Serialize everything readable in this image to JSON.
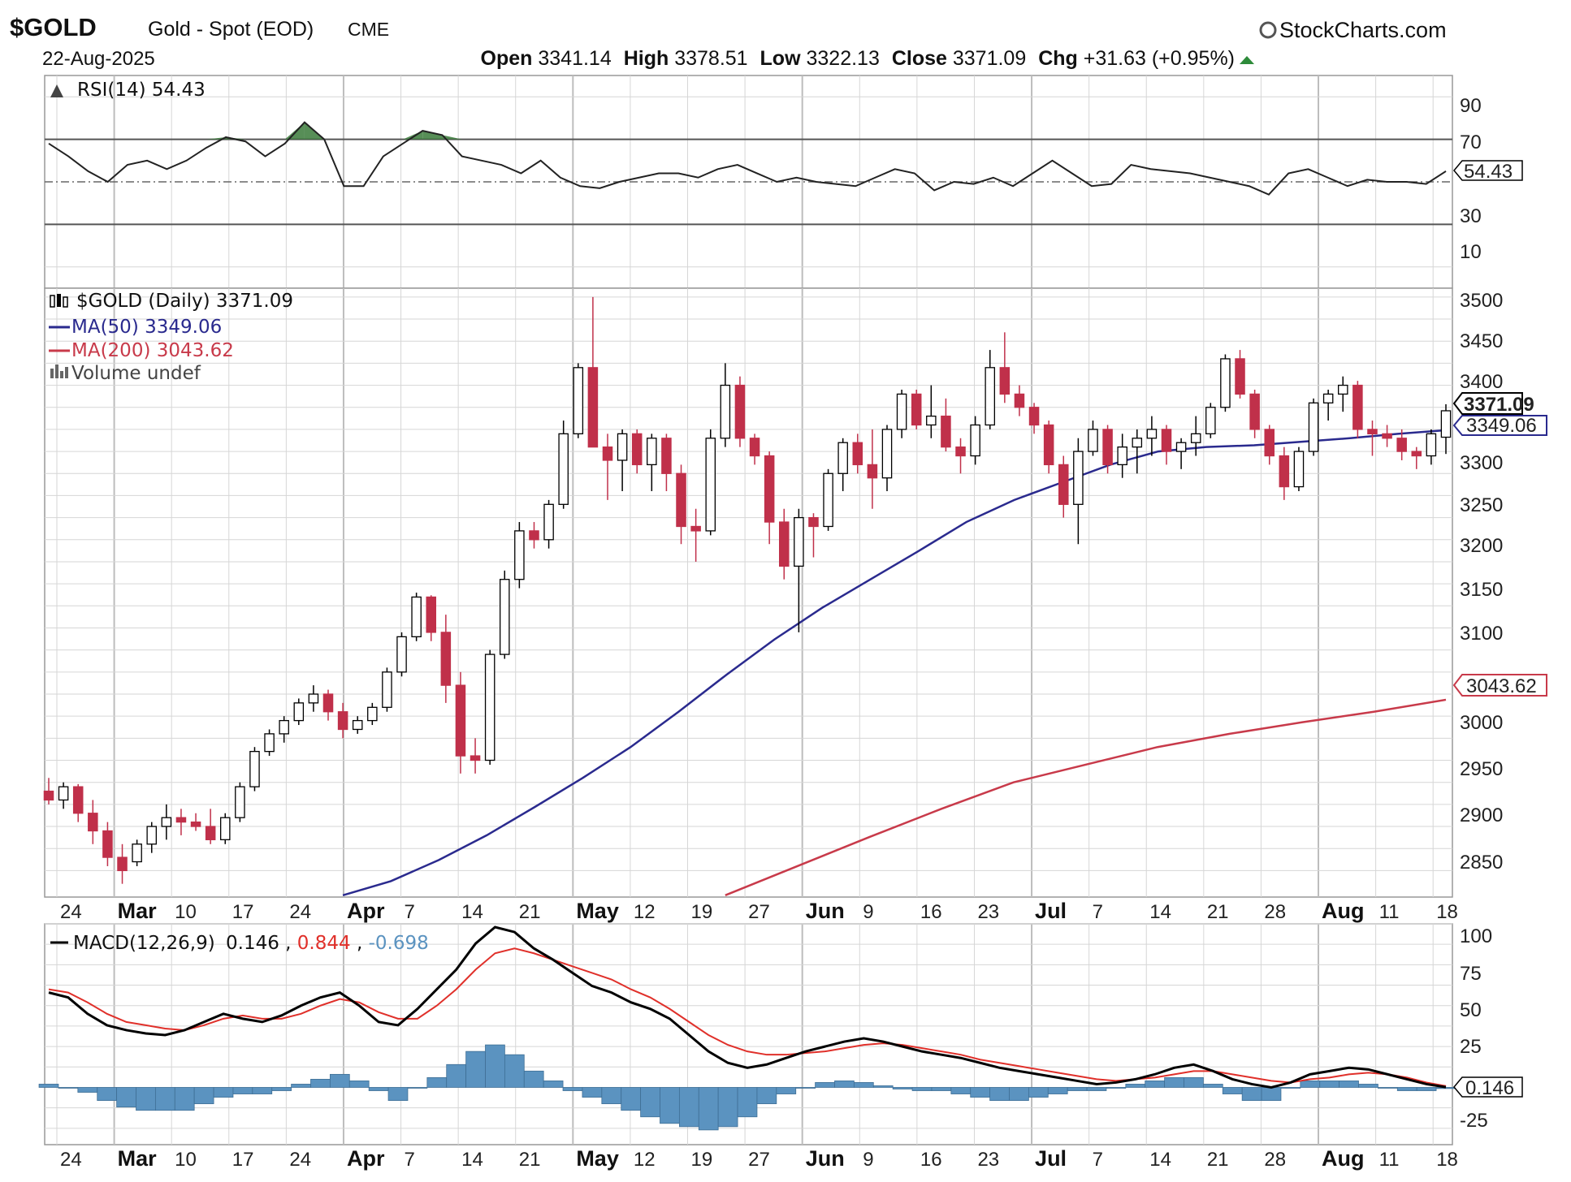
{
  "header": {
    "symbol": "$GOLD",
    "name": "Gold - Spot (EOD)",
    "exchange": "CME",
    "date": "22-Aug-2025",
    "brand": "StockCharts.com",
    "open_label": "Open",
    "open": "3341.14",
    "high_label": "High",
    "high": "3378.51",
    "low_label": "Low",
    "low": "3322.13",
    "close_label": "Close",
    "close": "3371.09",
    "chg_label": "Chg",
    "chg": "+31.63 (+0.95%)"
  },
  "rsi_panel": {
    "legend": "RSI(14) 54.43",
    "ticks": [
      "90",
      "70",
      "30",
      "10"
    ],
    "value_tag": "54.43"
  },
  "price_panel": {
    "legend_price": "$GOLD (Daily) 3371.09",
    "legend_ma50": "MA(50) 3349.06",
    "legend_ma200": "MA(200) 3043.62",
    "legend_volume": "Volume undef",
    "ticks": [
      "3500",
      "3450",
      "3400",
      "3300",
      "3250",
      "3200",
      "3150",
      "3100",
      "3000",
      "2950",
      "2900",
      "2850"
    ],
    "close_tag": "3371.09",
    "ma50_tag": "3349.06",
    "ma200_tag": "3043.62"
  },
  "macd_panel": {
    "legend_name": "MACD(12,26,9)",
    "legend_macd": "0.146",
    "legend_signal": "0.844",
    "legend_hist": "-0.698",
    "ticks": [
      "100",
      "75",
      "50",
      "25",
      "-25"
    ],
    "value_tag": "0.146"
  },
  "x_axis": {
    "labels": [
      {
        "text": "24",
        "bold": false
      },
      {
        "text": "Mar",
        "bold": true
      },
      {
        "text": "10",
        "bold": false
      },
      {
        "text": "17",
        "bold": false
      },
      {
        "text": "24",
        "bold": false
      },
      {
        "text": "Apr",
        "bold": true
      },
      {
        "text": "7",
        "bold": false
      },
      {
        "text": "14",
        "bold": false
      },
      {
        "text": "21",
        "bold": false
      },
      {
        "text": "May",
        "bold": true
      },
      {
        "text": "12",
        "bold": false
      },
      {
        "text": "19",
        "bold": false
      },
      {
        "text": "27",
        "bold": false
      },
      {
        "text": "Jun",
        "bold": true
      },
      {
        "text": "9",
        "bold": false
      },
      {
        "text": "16",
        "bold": false
      },
      {
        "text": "23",
        "bold": false
      },
      {
        "text": "Jul",
        "bold": true
      },
      {
        "text": "7",
        "bold": false
      },
      {
        "text": "14",
        "bold": false
      },
      {
        "text": "21",
        "bold": false
      },
      {
        "text": "28",
        "bold": false
      },
      {
        "text": "Aug",
        "bold": true
      },
      {
        "text": "11",
        "bold": false
      },
      {
        "text": "18",
        "bold": false
      }
    ]
  },
  "colors": {
    "up_candle": "#ffffff",
    "down_candle": "#c0304a",
    "candle_outline": "#000000",
    "ma50": "#2a2a8e",
    "ma200": "#c83a4a",
    "macd_line": "#000000",
    "signal_line": "#e0302a",
    "histogram": "#5b93c0",
    "rsi_fill": "#3a7a3a",
    "grid": "#d6d6d6"
  },
  "chart_data": [
    {
      "type": "line",
      "title": "RSI(14) 54.43",
      "ylim": [
        0,
        100
      ],
      "reference_lines": [
        70,
        50,
        30
      ],
      "values": [
        68,
        62,
        55,
        50,
        58,
        60,
        56,
        60,
        66,
        71,
        69,
        62,
        68,
        78,
        70,
        48,
        48,
        62,
        68,
        74,
        72,
        62,
        60,
        58,
        54,
        60,
        52,
        48,
        47,
        50,
        52,
        54,
        54,
        52,
        56,
        58,
        54,
        50,
        52,
        50,
        49,
        48,
        52,
        56,
        54,
        46,
        50,
        49,
        52,
        48,
        54,
        60,
        54,
        48,
        49,
        58,
        56,
        55,
        54,
        52,
        50,
        48,
        44,
        54,
        56,
        52,
        48,
        51,
        50,
        50,
        49,
        55
      ]
    },
    {
      "type": "candlestick",
      "title": "$GOLD (Daily) 3371.09",
      "ylim": [
        2820,
        3510
      ],
      "ohlc": [
        [
          2940,
          2955,
          2925,
          2930
        ],
        [
          2930,
          2950,
          2920,
          2945
        ],
        [
          2945,
          2948,
          2905,
          2915
        ],
        [
          2915,
          2930,
          2880,
          2895
        ],
        [
          2895,
          2905,
          2855,
          2865
        ],
        [
          2865,
          2880,
          2835,
          2850
        ],
        [
          2860,
          2885,
          2855,
          2880
        ],
        [
          2880,
          2905,
          2870,
          2900
        ],
        [
          2900,
          2925,
          2885,
          2910
        ],
        [
          2910,
          2920,
          2890,
          2905
        ],
        [
          2905,
          2915,
          2895,
          2900
        ],
        [
          2900,
          2920,
          2880,
          2885
        ],
        [
          2885,
          2915,
          2880,
          2910
        ],
        [
          2910,
          2950,
          2905,
          2945
        ],
        [
          2945,
          2990,
          2940,
          2985
        ],
        [
          2985,
          3010,
          2980,
          3005
        ],
        [
          3005,
          3025,
          2995,
          3020
        ],
        [
          3020,
          3045,
          3015,
          3040
        ],
        [
          3040,
          3060,
          3030,
          3050
        ],
        [
          3050,
          3055,
          3020,
          3030
        ],
        [
          3030,
          3040,
          3000,
          3010
        ],
        [
          3010,
          3025,
          3005,
          3020
        ],
        [
          3020,
          3040,
          3015,
          3035
        ],
        [
          3035,
          3080,
          3030,
          3075
        ],
        [
          3075,
          3120,
          3070,
          3115
        ],
        [
          3115,
          3165,
          3110,
          3160
        ],
        [
          3160,
          3162,
          3110,
          3120
        ],
        [
          3120,
          3140,
          3040,
          3060
        ],
        [
          3060,
          3075,
          2960,
          2980
        ],
        [
          2980,
          3000,
          2960,
          2975
        ],
        [
          2975,
          3100,
          2970,
          3095
        ],
        [
          3095,
          3190,
          3090,
          3180
        ],
        [
          3180,
          3245,
          3170,
          3235
        ],
        [
          3235,
          3245,
          3215,
          3225
        ],
        [
          3225,
          3270,
          3215,
          3265
        ],
        [
          3265,
          3360,
          3260,
          3345
        ],
        [
          3345,
          3425,
          3340,
          3420
        ],
        [
          3420,
          3500,
          3330,
          3330
        ],
        [
          3330,
          3345,
          3270,
          3315
        ],
        [
          3315,
          3350,
          3280,
          3345
        ],
        [
          3345,
          3350,
          3300,
          3310
        ],
        [
          3310,
          3345,
          3280,
          3340
        ],
        [
          3340,
          3345,
          3280,
          3300
        ],
        [
          3300,
          3310,
          3220,
          3240
        ],
        [
          3240,
          3260,
          3200,
          3235
        ],
        [
          3235,
          3350,
          3230,
          3340
        ],
        [
          3340,
          3425,
          3330,
          3400
        ],
        [
          3400,
          3410,
          3330,
          3340
        ],
        [
          3340,
          3345,
          3310,
          3320
        ],
        [
          3320,
          3325,
          3220,
          3245
        ],
        [
          3245,
          3260,
          3180,
          3195
        ],
        [
          3195,
          3260,
          3120,
          3250
        ],
        [
          3250,
          3255,
          3205,
          3240
        ],
        [
          3240,
          3305,
          3235,
          3300
        ],
        [
          3300,
          3340,
          3280,
          3335
        ],
        [
          3335,
          3345,
          3300,
          3310
        ],
        [
          3310,
          3350,
          3260,
          3295
        ],
        [
          3295,
          3355,
          3280,
          3350
        ],
        [
          3350,
          3395,
          3340,
          3390
        ],
        [
          3390,
          3395,
          3350,
          3355
        ],
        [
          3355,
          3400,
          3340,
          3365
        ],
        [
          3365,
          3385,
          3325,
          3330
        ],
        [
          3330,
          3340,
          3300,
          3320
        ],
        [
          3320,
          3365,
          3310,
          3355
        ],
        [
          3355,
          3440,
          3350,
          3420
        ],
        [
          3420,
          3460,
          3380,
          3390
        ],
        [
          3390,
          3400,
          3365,
          3375
        ],
        [
          3375,
          3380,
          3345,
          3355
        ],
        [
          3355,
          3360,
          3300,
          3310
        ],
        [
          3310,
          3320,
          3250,
          3265
        ],
        [
          3265,
          3340,
          3220,
          3325
        ],
        [
          3325,
          3360,
          3320,
          3350
        ],
        [
          3350,
          3355,
          3300,
          3310
        ],
        [
          3310,
          3345,
          3295,
          3330
        ],
        [
          3330,
          3350,
          3300,
          3340
        ],
        [
          3340,
          3365,
          3320,
          3350
        ],
        [
          3350,
          3355,
          3310,
          3325
        ],
        [
          3325,
          3340,
          3305,
          3335
        ],
        [
          3335,
          3365,
          3320,
          3345
        ],
        [
          3345,
          3380,
          3340,
          3375
        ],
        [
          3375,
          3435,
          3370,
          3430
        ],
        [
          3430,
          3440,
          3385,
          3390
        ],
        [
          3390,
          3395,
          3340,
          3350
        ],
        [
          3350,
          3355,
          3310,
          3320
        ],
        [
          3320,
          3330,
          3270,
          3285
        ],
        [
          3285,
          3330,
          3280,
          3325
        ],
        [
          3325,
          3385,
          3320,
          3380
        ],
        [
          3380,
          3395,
          3360,
          3390
        ],
        [
          3390,
          3410,
          3370,
          3400
        ],
        [
          3400,
          3405,
          3340,
          3350
        ],
        [
          3350,
          3360,
          3320,
          3345
        ],
        [
          3345,
          3355,
          3330,
          3340
        ],
        [
          3340,
          3350,
          3315,
          3325
        ],
        [
          3325,
          3330,
          3305,
          3320
        ],
        [
          3320,
          3350,
          3310,
          3345
        ],
        [
          3341.14,
          3378.51,
          3322.13,
          3371.09
        ]
      ],
      "series": [
        {
          "name": "MA(50)",
          "x_start_index": 20,
          "values": [
            2822,
            2838,
            2862,
            2890,
            2922,
            2955,
            2990,
            3030,
            3072,
            3112,
            3148,
            3180,
            3212,
            3245,
            3270,
            3290,
            3310,
            3325,
            3330,
            3332,
            3336,
            3340,
            3345,
            3349.06
          ]
        },
        {
          "name": "MA(200)",
          "x_start_index": 46,
          "values": [
            2822,
            2855,
            2888,
            2920,
            2950,
            2970,
            2990,
            3005,
            3018,
            3030,
            3043.62
          ]
        }
      ]
    },
    {
      "type": "line",
      "title": "MACD(12,26,9)",
      "ylim": [
        -35,
        100
      ],
      "series": [
        {
          "name": "MACD",
          "values": [
            58,
            55,
            45,
            38,
            35,
            33,
            32,
            35,
            40,
            45,
            42,
            40,
            44,
            50,
            55,
            58,
            50,
            40,
            38,
            48,
            60,
            72,
            88,
            98,
            95,
            85,
            78,
            70,
            62,
            58,
            52,
            48,
            42,
            32,
            22,
            15,
            12,
            14,
            18,
            22,
            25,
            28,
            30,
            28,
            25,
            22,
            20,
            18,
            15,
            12,
            10,
            8,
            6,
            4,
            2,
            3,
            5,
            8,
            12,
            14,
            10,
            5,
            2,
            0,
            3,
            8,
            10,
            12,
            11,
            8,
            5,
            2,
            0.146
          ]
        },
        {
          "name": "Signal",
          "values": [
            60,
            58,
            52,
            45,
            40,
            38,
            36,
            35,
            38,
            42,
            44,
            42,
            42,
            45,
            50,
            54,
            52,
            46,
            42,
            42,
            50,
            60,
            72,
            82,
            85,
            82,
            78,
            74,
            70,
            66,
            60,
            55,
            48,
            40,
            32,
            26,
            22,
            20,
            20,
            21,
            22,
            24,
            26,
            27,
            26,
            24,
            22,
            20,
            17,
            15,
            13,
            11,
            9,
            7,
            5,
            4,
            5,
            6,
            8,
            10,
            10,
            8,
            6,
            4,
            3,
            5,
            6,
            8,
            9,
            8,
            6,
            3,
            0.844
          ]
        },
        {
          "name": "Histogram",
          "values": [
            2,
            0,
            -3,
            -8,
            -12,
            -14,
            -14,
            -14,
            -10,
            -6,
            -4,
            -4,
            -2,
            2,
            5,
            8,
            4,
            -2,
            -8,
            0,
            6,
            14,
            22,
            26,
            20,
            10,
            4,
            -2,
            -6,
            -10,
            -14,
            -18,
            -22,
            -24,
            -26,
            -24,
            -18,
            -10,
            -4,
            0,
            3,
            4,
            3,
            1,
            -1,
            -2,
            -2,
            -4,
            -6,
            -8,
            -8,
            -6,
            -4,
            -2,
            -2,
            0,
            2,
            4,
            6,
            6,
            2,
            -4,
            -8,
            -8,
            0,
            4,
            4,
            4,
            2,
            0,
            -2,
            -2,
            -0.698
          ]
        }
      ]
    }
  ]
}
